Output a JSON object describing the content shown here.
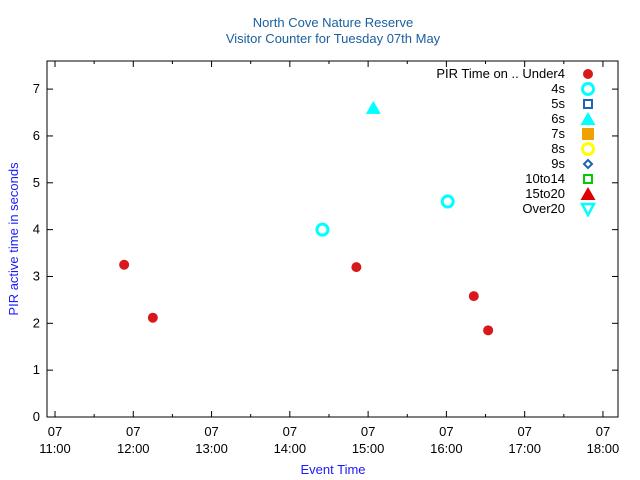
{
  "chart_data": {
    "type": "scatter",
    "title": "North Cove Nature Reserve",
    "subtitle": "Visitor Counter for Tuesday 07th May",
    "xlabel": "Event Time",
    "ylabel": "PIR active time in seconds",
    "xlim": [
      "11:00",
      "18:10"
    ],
    "ylim": [
      0,
      7.6
    ],
    "x_ticks": [
      {
        "day": "07",
        "time": "11:00"
      },
      {
        "day": "07",
        "time": "12:00"
      },
      {
        "day": "07",
        "time": "13:00"
      },
      {
        "day": "07",
        "time": "14:00"
      },
      {
        "day": "07",
        "time": "15:00"
      },
      {
        "day": "07",
        "time": "16:00"
      },
      {
        "day": "07",
        "time": "17:00"
      },
      {
        "day": "07",
        "time": "18:00"
      }
    ],
    "y_ticks": [
      "0",
      "1",
      "2",
      "3",
      "4",
      "5",
      "6",
      "7"
    ],
    "grid": false,
    "legend_position": "top-right",
    "legend_title": "PIR Time on ..",
    "series": [
      {
        "name": "Under4",
        "marker": "circle-filled",
        "color": "#d7191c",
        "points": [
          [
            "11:53",
            3.25
          ],
          [
            "12:15",
            2.12
          ],
          [
            "14:51",
            3.2
          ],
          [
            "16:21",
            2.58
          ],
          [
            "16:32",
            1.85
          ]
        ]
      },
      {
        "name": "4s",
        "marker": "circle-open",
        "color": "#00ffff",
        "points": [
          [
            "14:25",
            4.0
          ],
          [
            "16:01",
            4.6
          ]
        ]
      },
      {
        "name": "5s",
        "marker": "square-open",
        "color": "#1f63b4",
        "points": []
      },
      {
        "name": "6s",
        "marker": "triangle-filled",
        "color": "#00ffff",
        "points": [
          [
            "15:04",
            6.6
          ]
        ]
      },
      {
        "name": "7s",
        "marker": "square-filled",
        "color": "#f0a000",
        "points": []
      },
      {
        "name": "8s",
        "marker": "circle-open",
        "color": "#ffff00",
        "points": []
      },
      {
        "name": "9s",
        "marker": "diamond-open",
        "color": "#1f63b4",
        "points": []
      },
      {
        "name": "10to14",
        "marker": "square-open",
        "color": "#00cc00",
        "points": []
      },
      {
        "name": "15to20",
        "marker": "triangle-filled",
        "color": "#e00000",
        "points": []
      },
      {
        "name": "Over20",
        "marker": "triangle-down-open",
        "color": "#00ffff",
        "points": []
      }
    ]
  }
}
